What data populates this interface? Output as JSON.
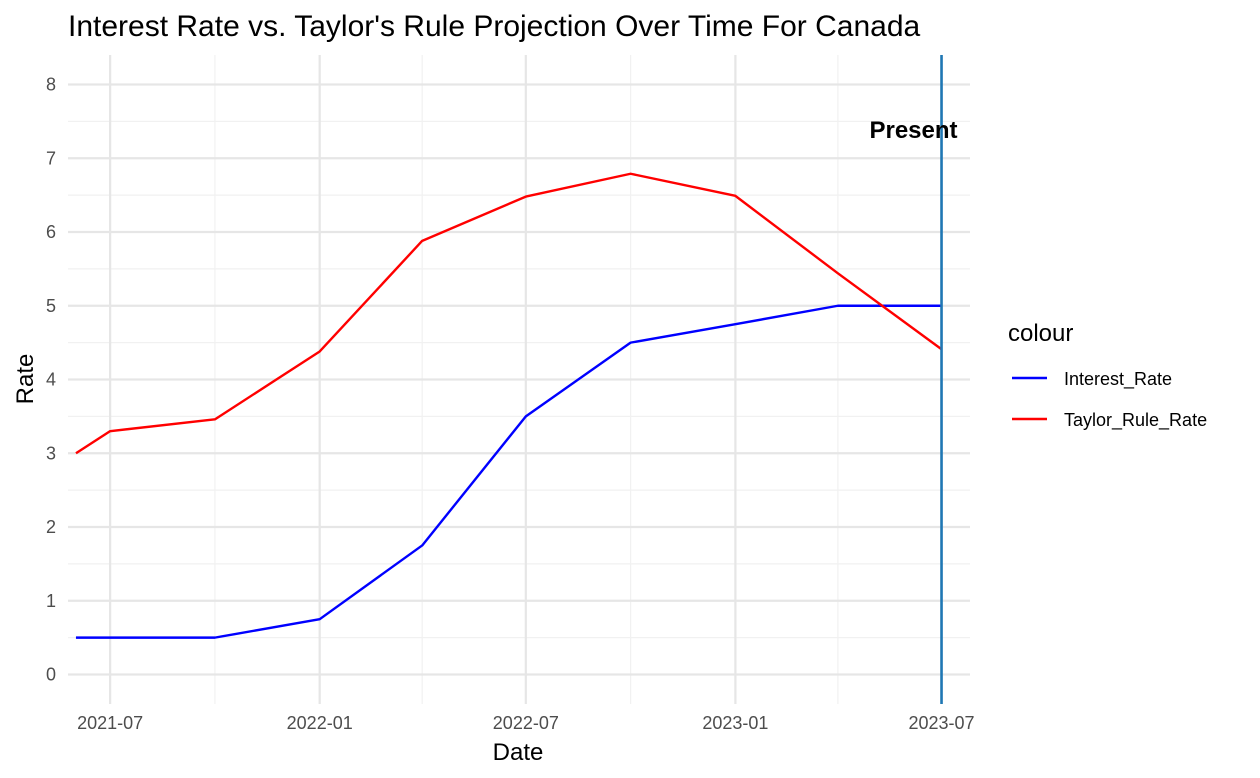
{
  "chart_data": {
    "type": "line",
    "title": "Interest Rate vs. Taylor's Rule Projection Over Time For Canada",
    "xlabel": "Date",
    "ylabel": "Rate",
    "x_ticks": [
      "2021-07",
      "2022-01",
      "2022-07",
      "2023-01",
      "2023-07"
    ],
    "y_ticks": [
      "0",
      "1",
      "2",
      "3",
      "4",
      "5",
      "6",
      "7",
      "8"
    ],
    "ylim": [
      -0.4,
      8.4
    ],
    "xlim": [
      "2021-05-25",
      "2023-07-26"
    ],
    "grid": true,
    "legend": {
      "title": "colour",
      "position": "right"
    },
    "x": [
      "2021-06-01",
      "2021-07-01",
      "2021-10-01",
      "2022-01-01",
      "2022-04-01",
      "2022-07-01",
      "2022-10-01",
      "2023-01-01",
      "2023-04-01",
      "2023-07-01"
    ],
    "series": [
      {
        "name": "Interest_Rate",
        "color": "#0000FF",
        "values": [
          0.5,
          0.5,
          0.5,
          0.75,
          1.75,
          3.5,
          4.5,
          4.75,
          5.0,
          5.0
        ]
      },
      {
        "name": "Taylor_Rule_Rate",
        "color": "#FF0000",
        "values": [
          3.0,
          3.3,
          3.46,
          4.38,
          5.88,
          6.48,
          6.79,
          6.49,
          5.44,
          4.41
        ]
      }
    ],
    "annotations": [
      {
        "type": "vline",
        "x": "2023-07-01",
        "label": "Present",
        "color": "#1F77B4"
      }
    ]
  }
}
